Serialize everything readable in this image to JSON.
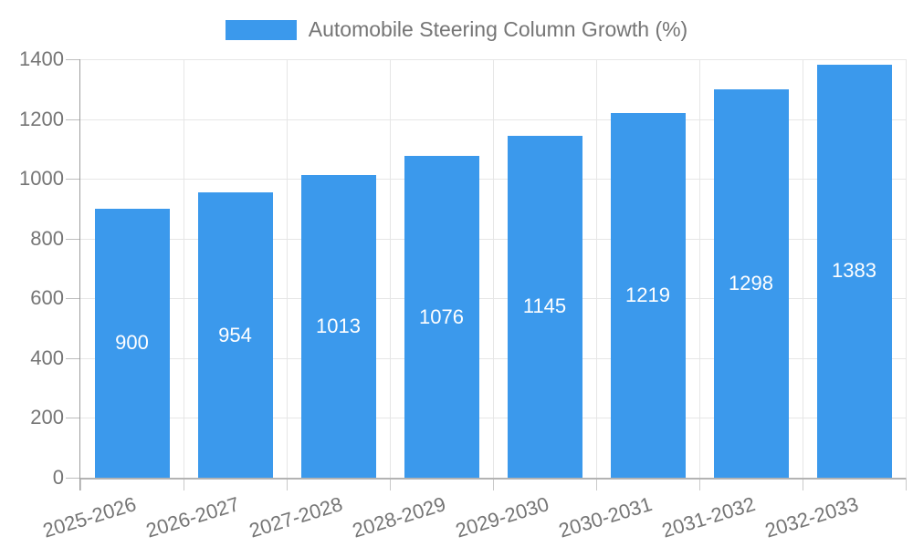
{
  "legend": {
    "label": "Automobile Steering Column Growth (%)"
  },
  "chart_data": {
    "type": "bar",
    "title": "Automobile Steering Column Growth (%)",
    "series_name": "Automobile Steering Column Growth (%)",
    "categories": [
      "2025-2026",
      "2026-2027",
      "2027-2028",
      "2028-2029",
      "2029-2030",
      "2030-2031",
      "2031-2032",
      "2032-2033"
    ],
    "values": [
      900,
      954,
      1013,
      1076,
      1145,
      1219,
      1298,
      1383
    ],
    "bar_value_labels": [
      "900",
      "954",
      "1013",
      "1076",
      "1145",
      "1219",
      "1298",
      "1383"
    ],
    "xlabel": "",
    "ylabel": "",
    "ylim": [
      0,
      1400
    ],
    "yticks": [
      0,
      200,
      400,
      600,
      800,
      1000,
      1200,
      1400
    ],
    "ytick_labels": [
      "0",
      "200",
      "400",
      "600",
      "800",
      "1000",
      "1200",
      "1400"
    ],
    "grid": true,
    "legend_position": "top-center",
    "bar_label_position": "inside-center",
    "x_label_rotation_deg": -17,
    "colors": {
      "bar": "#3b99ec",
      "bar_label_text": "#ffffff",
      "axis_text": "#757575",
      "gridline": "#e6e6e6",
      "axis_line": "#b3b3b3"
    }
  }
}
